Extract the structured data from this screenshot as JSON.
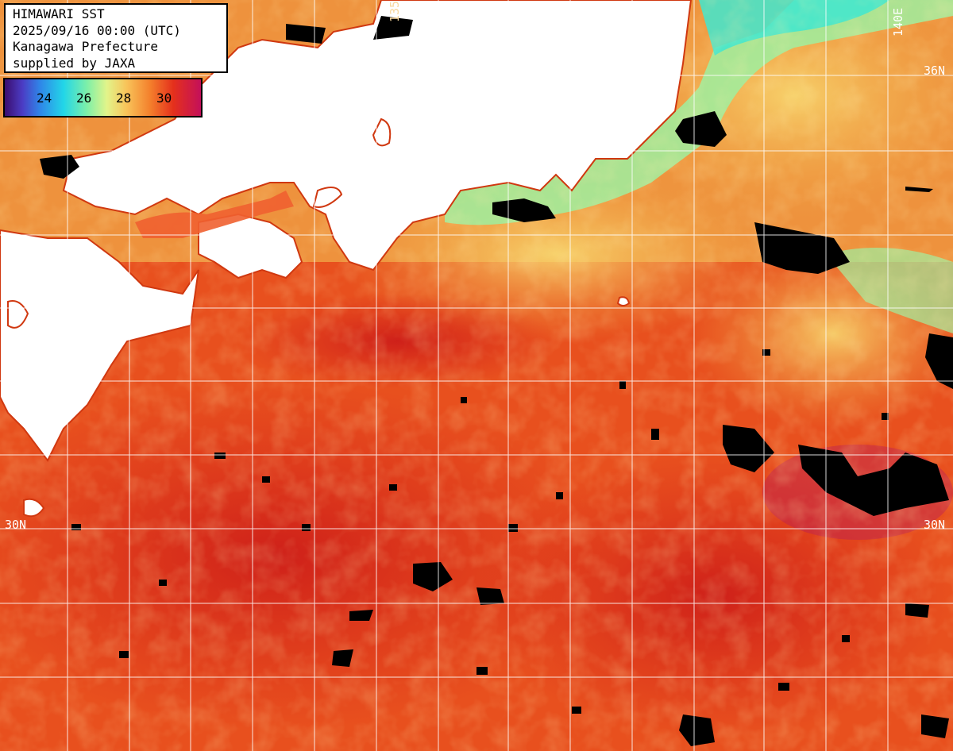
{
  "title_box": {
    "line1": "HIMAWARI SST",
    "line2": "2025/09/16 00:00 (UTC)",
    "line3": "Kanagawa Prefecture",
    "line4": "supplied by JAXA"
  },
  "legend": {
    "ticks": [
      "24",
      "26",
      "28",
      "30"
    ]
  },
  "grid_labels": {
    "lat_36": "36N",
    "lat_30_left": "30N",
    "lat_30_right": "30N",
    "lon_140": "140E",
    "lon_135": "135"
  },
  "colors": {
    "land": "#ffffff",
    "cloud": "#000000",
    "warm_sea": "#e8481c",
    "hot_sea": "#d4201a",
    "mild_sea": "#f0a040",
    "cool_sea": "#f8d870",
    "cold_sea": "#9ef0a0",
    "coldest_sea": "#40e8d0",
    "grid": "#ffffff"
  }
}
